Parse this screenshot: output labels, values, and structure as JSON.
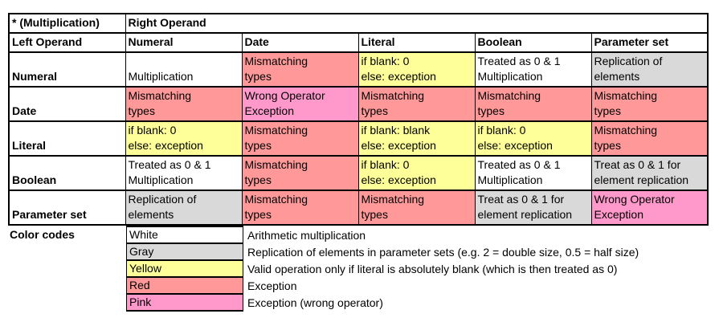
{
  "matrix": {
    "corner_label": "* (Multiplication)",
    "right_operand_label": "Right Operand",
    "left_operand_label": "Left Operand",
    "column_headers": [
      "Numeral",
      "Date",
      "Literal",
      "Boolean",
      "Parameter set"
    ],
    "rows": [
      {
        "label": "Numeral",
        "cells": [
          {
            "text": "Multiplication",
            "color": "white"
          },
          {
            "text": "Mismatching\ntypes",
            "color": "red"
          },
          {
            "text": "if blank: 0\nelse: exception",
            "color": "yellow"
          },
          {
            "text": "Treated as 0 & 1\nMultiplication",
            "color": "white"
          },
          {
            "text": "Replication of\nelements",
            "color": "gray"
          }
        ]
      },
      {
        "label": "Date",
        "cells": [
          {
            "text": "Mismatching\ntypes",
            "color": "red"
          },
          {
            "text": "Wrong Operator\nException",
            "color": "pink"
          },
          {
            "text": "Mismatching\ntypes",
            "color": "red"
          },
          {
            "text": "Mismatching\ntypes",
            "color": "red"
          },
          {
            "text": "Mismatching\ntypes",
            "color": "red"
          }
        ]
      },
      {
        "label": "Literal",
        "cells": [
          {
            "text": "if blank: 0\nelse: exception",
            "color": "yellow"
          },
          {
            "text": "Mismatching\ntypes",
            "color": "red"
          },
          {
            "text": "if blank: blank\nelse: exception",
            "color": "yellow"
          },
          {
            "text": "if blank: 0\nelse: exception",
            "color": "yellow"
          },
          {
            "text": "Mismatching\ntypes",
            "color": "red"
          }
        ]
      },
      {
        "label": "Boolean",
        "cells": [
          {
            "text": "Treated as 0 & 1\nMultiplication",
            "color": "white"
          },
          {
            "text": "Mismatching\ntypes",
            "color": "red"
          },
          {
            "text": "if blank: 0\nelse: exception",
            "color": "yellow"
          },
          {
            "text": "Treated as 0 & 1\nMultiplication",
            "color": "white"
          },
          {
            "text": "Treat as 0 & 1 for\nelement replication",
            "color": "gray"
          }
        ]
      },
      {
        "label": "Parameter set",
        "cells": [
          {
            "text": "Replication of\nelements",
            "color": "gray"
          },
          {
            "text": "Mismatching\ntypes",
            "color": "red"
          },
          {
            "text": "Mismatching\ntypes",
            "color": "red"
          },
          {
            "text": "Treat as 0 & 1 for\nelement replication",
            "color": "gray"
          },
          {
            "text": "Wrong Operator\nException",
            "color": "pink"
          }
        ]
      }
    ]
  },
  "legend": {
    "title": "Color codes",
    "entries": [
      {
        "name": "White",
        "color": "white",
        "description": "Arithmetic multiplication"
      },
      {
        "name": "Gray",
        "color": "gray",
        "description": "Replication of elements in parameter sets (e.g. 2 = double size, 0.5 = half size)"
      },
      {
        "name": "Yellow",
        "color": "yellow",
        "description": "Valid operation only if literal is absolutely blank (which is then treated as 0)"
      },
      {
        "name": "Red",
        "color": "red",
        "description": "Exception"
      },
      {
        "name": "Pink",
        "color": "pink",
        "description": "Exception (wrong operator)"
      }
    ]
  },
  "colors": {
    "white": "#FFFFFF",
    "gray": "#D9D9D9",
    "yellow": "#FFFF99",
    "red": "#FF9999",
    "pink": "#FF99CC",
    "border": "#000000"
  }
}
